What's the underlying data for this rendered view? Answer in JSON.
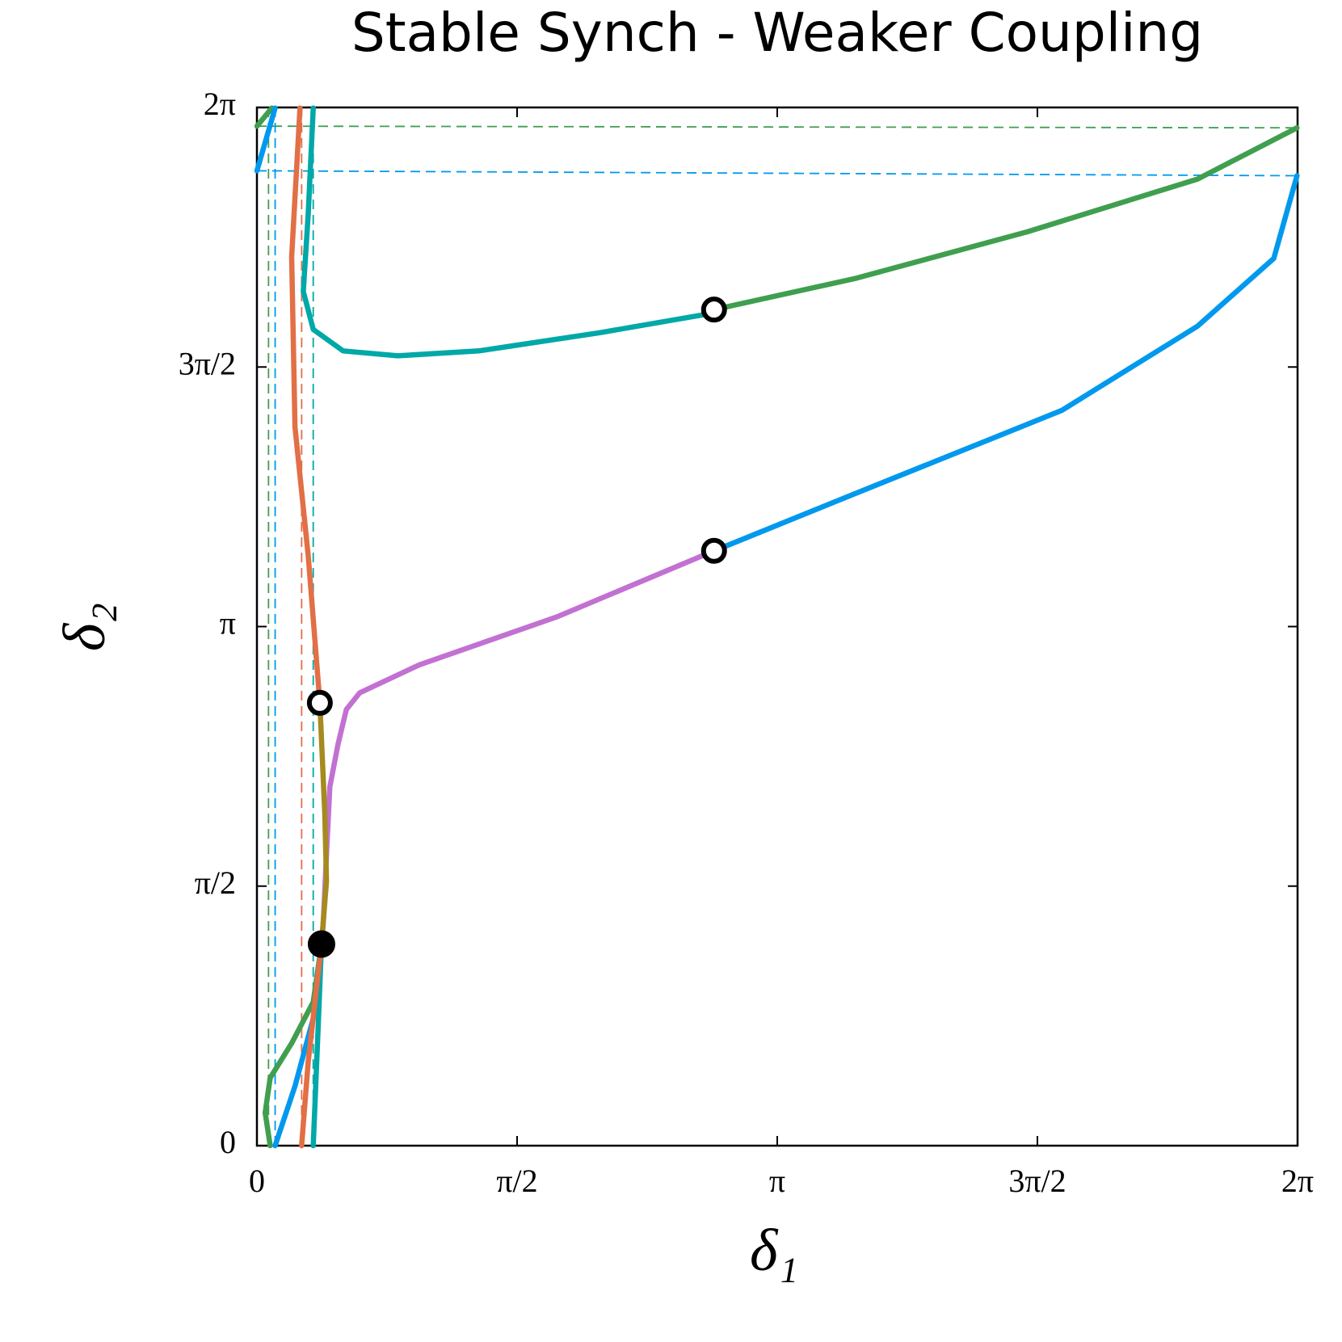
{
  "chart_data": {
    "type": "phase",
    "title": "Stable Synch - Weaker Coupling",
    "x_label": "δ₁",
    "y_label": "δ₂",
    "xlim": [
      0,
      6.2832
    ],
    "ylim": [
      0,
      6.2832
    ],
    "xticks": [
      {
        "value": 0,
        "label": "0"
      },
      {
        "value": 1.5708,
        "label": "π/2"
      },
      {
        "value": 3.1416,
        "label": "π"
      },
      {
        "value": 4.7124,
        "label": "3π/2"
      },
      {
        "value": 6.2832,
        "label": "2π"
      }
    ],
    "yticks": [
      {
        "value": 0,
        "label": "0"
      },
      {
        "value": 1.5708,
        "label": "π/2"
      },
      {
        "value": 3.1416,
        "label": "π"
      },
      {
        "value": 4.7124,
        "label": "3π/2"
      },
      {
        "value": 6.2832,
        "label": "2π"
      }
    ],
    "grid": false,
    "series": [
      {
        "color": "#3f9f4f",
        "x": [
          2.76,
          3.62,
          4.65,
          5.68,
          6.28,
          null,
          0,
          0.09
        ],
        "y": [
          5.06,
          5.25,
          5.53,
          5.85,
          6.16,
          null,
          6.17,
          6.28
        ]
      },
      {
        "color": "#3f9f4f",
        "x": [
          0.08,
          0.05,
          0.08,
          0.21,
          0.34,
          0.39
        ],
        "y": [
          0,
          0.2,
          0.41,
          0.62,
          0.87,
          1.22
        ]
      },
      {
        "color": "#00a8a8",
        "x": [
          2.76,
          2.07,
          1.34,
          0.85,
          0.52,
          0.34,
          0.28,
          0.31,
          0.34,
          null,
          0.34,
          0.37,
          0.39
        ],
        "y": [
          5.04,
          4.92,
          4.81,
          4.78,
          4.81,
          4.94,
          5.17,
          5.64,
          6.28,
          null,
          0,
          0.72,
          1.22
        ]
      },
      {
        "color": "#0099ee",
        "x": [
          2.76,
          3.62,
          4.86,
          5.68,
          6.14,
          6.28,
          null,
          0,
          0.11,
          null,
          0.11,
          0.23,
          0.34,
          0.39
        ],
        "y": [
          3.6,
          3.95,
          4.45,
          4.96,
          5.37,
          5.87,
          null,
          5.9,
          6.28,
          null,
          0,
          0.36,
          0.77,
          1.22
        ]
      },
      {
        "color": "#c271d2",
        "x": [
          2.76,
          1.81,
          0.98,
          0.62,
          0.54,
          0.49,
          0.44,
          0.42,
          0.4,
          0.39
        ],
        "y": [
          3.6,
          3.2,
          2.91,
          2.74,
          2.64,
          2.43,
          2.17,
          1.76,
          1.34,
          1.22
        ]
      },
      {
        "color": "#e26f46",
        "x": [
          0.26,
          0.21,
          0.23,
          0.31,
          0.38,
          null,
          0.27,
          0.31,
          0.39
        ],
        "y": [
          6.28,
          5.38,
          4.35,
          3.57,
          2.68,
          null,
          0,
          0.51,
          1.22
        ]
      },
      {
        "color": "#a58a20",
        "x": [
          0.38,
          0.41,
          0.42,
          0.39
        ],
        "y": [
          2.68,
          2.01,
          1.6,
          1.22
        ]
      }
    ],
    "guides": [
      {
        "color": "#3f9f4f",
        "x": [
          0,
          6.28
        ],
        "y": [
          6.17,
          6.16
        ]
      },
      {
        "color": "#0099ee",
        "x": [
          0,
          6.28
        ],
        "y": [
          5.9,
          5.87
        ]
      },
      {
        "color": "#3f9f4f",
        "x": [
          0.07,
          0.07
        ],
        "y": [
          0,
          6.28
        ]
      },
      {
        "color": "#0099ee",
        "x": [
          0.11,
          0.11
        ],
        "y": [
          0,
          6.28
        ]
      },
      {
        "color": "#e26f46",
        "x": [
          0.27,
          0.27
        ],
        "y": [
          0,
          6.28
        ]
      },
      {
        "color": "#00a8a8",
        "x": [
          0.34,
          0.34
        ],
        "y": [
          0,
          6.28
        ]
      }
    ],
    "points": [
      {
        "x": 2.76,
        "y": 5.06,
        "filled": false
      },
      {
        "x": 2.76,
        "y": 3.6,
        "filled": false
      },
      {
        "x": 0.38,
        "y": 2.68,
        "filled": false
      },
      {
        "x": 0.39,
        "y": 1.22,
        "filled": true
      }
    ]
  }
}
